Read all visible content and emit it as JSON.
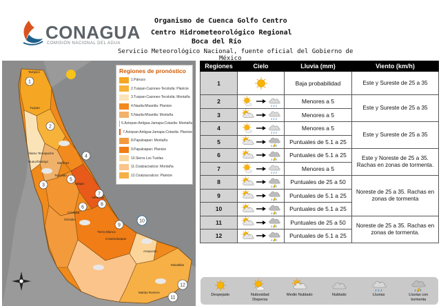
{
  "header": {
    "logo_text": "CONAGUA",
    "logo_subtext": "COMISIÓN NACIONAL DEL AGUA",
    "line1": "Organismo de Cuenca Golfo Centro",
    "line2": "Centro Hidrometeorológico Regional",
    "line3": "Boca del Río",
    "line4": "Servicio Meteorológico Nacional, fuente oficial del Gobierno de",
    "line5": "México"
  },
  "map": {
    "legend_title": "Regiones de pronóstico",
    "legend_items": [
      {
        "label": "1.Pánuco",
        "color": "#f5a623"
      },
      {
        "label": "2.Tuxpan-Cazones-Tecolutla: Planicie",
        "color": "#f7b23a"
      },
      {
        "label": "3.Tuxpan-Cazones-Tecolutla: Montaña",
        "color": "#fbe3b8"
      },
      {
        "label": "4.Nautla-Misantla: Planicie",
        "color": "#f28a1e"
      },
      {
        "label": "5.Nautla-Misantla: Montaña",
        "color": "#f0b26a"
      },
      {
        "label": "6.Actopan-Antigua-Jamapa-Cotaxtla: Montaña",
        "color": "#f39530"
      },
      {
        "label": "7.Actopan-Antigua-Jamapa-Cotaxtla: Planicie",
        "color": "#e85a1a"
      },
      {
        "label": "8.Papaloapan: Montaña",
        "color": "#f29a3c"
      },
      {
        "label": "9.Papaloapan: Planicie",
        "color": "#f07d16"
      },
      {
        "label": "10.Sierra Los Tuxtlas",
        "color": "#fcd59a"
      },
      {
        "label": "11.Coatzacoalcos: Montaña",
        "color": "#fbc48a"
      },
      {
        "label": "12.Coatzacoalcos: Planicie",
        "color": "#f6b045"
      }
    ],
    "region_numbers": [
      "1",
      "2",
      "3",
      "4",
      "5",
      "6",
      "7",
      "8",
      "9",
      "10",
      "11",
      "12"
    ],
    "city_labels": [
      "Tampico",
      "Tuxpan",
      "Álamo Temapache",
      "Huauchinango",
      "Martínez",
      "Teziutlán",
      "Xalapa",
      "Veracruz",
      "Córdoba",
      "Orizaba",
      "Tierra Blanca",
      "Acayucan",
      "Minatitlán",
      "Cosamaloapan",
      "Matías Romero"
    ]
  },
  "table": {
    "headers": {
      "regiones": "Regiones",
      "cielo": "Cielo",
      "lluvia": "Lluvia (mm)",
      "viento": "Viento (km/h)"
    },
    "rows": [
      {
        "region": "1",
        "sky_from": "despejado",
        "sky_to": "",
        "rain": "Baja probabilidad",
        "wind": "Este y Sureste de 25 a 35",
        "wind_rows": 1
      },
      {
        "region": "2",
        "sky_from": "nubosidad-dispersa",
        "sky_to": "lluvias",
        "rain": "Menores a 5",
        "wind": "Este y Sureste de 25 a 35",
        "wind_rows": 2
      },
      {
        "region": "3",
        "sky_from": "medio-nublado",
        "sky_to": "lluvias",
        "rain": "Menores a 5",
        "wind": "",
        "wind_rows": 0
      },
      {
        "region": "4",
        "sky_from": "nubosidad-dispersa",
        "sky_to": "lluvias",
        "rain": "Menores a 5",
        "wind": "Este y Sureste de 25 a 35",
        "wind_rows": 2
      },
      {
        "region": "5",
        "sky_from": "medio-nublado",
        "sky_to": "lluvias-tormenta",
        "rain": "Puntuales de 5.1 a 25",
        "wind": "",
        "wind_rows": 0
      },
      {
        "region": "6",
        "sky_from": "medio-nublado",
        "sky_to": "lluvias-tormenta",
        "rain": "Puntuales de 5.1 a 25",
        "wind": "Este y Noreste de 25 a 35. Rachas en zonas de tormenta.",
        "wind_rows": 2
      },
      {
        "region": "7",
        "sky_from": "nubosidad-dispersa",
        "sky_to": "lluvias",
        "rain": "Menores a 5",
        "wind": "",
        "wind_rows": 0
      },
      {
        "region": "8",
        "sky_from": "medio-nublado",
        "sky_to": "lluvias-tormenta",
        "rain": "Puntuales de 25 a 50",
        "wind": "Noreste de 25 a 35. Rachas en zonas de tormenta",
        "wind_rows": 3
      },
      {
        "region": "9",
        "sky_from": "medio-nublado",
        "sky_to": "lluvias-tormenta",
        "rain": "Puntuales de 5.1 a 25",
        "wind": "",
        "wind_rows": 0
      },
      {
        "region": "10",
        "sky_from": "medio-nublado",
        "sky_to": "lluvias-tormenta",
        "rain": "Puntuales de 5.1 a 25",
        "wind": "",
        "wind_rows": 0
      },
      {
        "region": "11",
        "sky_from": "medio-nublado",
        "sky_to": "lluvias-tormenta",
        "rain": "Puntuales de 25 a 50",
        "wind": "Noreste de 25 a 35. Rachas en zonas de tormenta.",
        "wind_rows": 2
      },
      {
        "region": "12",
        "sky_from": "medio-nublado",
        "sky_to": "lluvias-tormenta",
        "rain": "Puntuales de 5.1 a 25",
        "wind": "",
        "wind_rows": 0
      }
    ]
  },
  "sky_legend": [
    {
      "id": "despejado",
      "label": "Despejado"
    },
    {
      "id": "nubosidad-dispersa",
      "label": "Nubosidad Dispersa"
    },
    {
      "id": "medio-nublado",
      "label": "Medio Nublado"
    },
    {
      "id": "nublado",
      "label": "Nublado"
    },
    {
      "id": "lluvias",
      "label": "Lluvias"
    },
    {
      "id": "lluvias-tormenta",
      "label": "Lluvias con tormenta"
    }
  ]
}
